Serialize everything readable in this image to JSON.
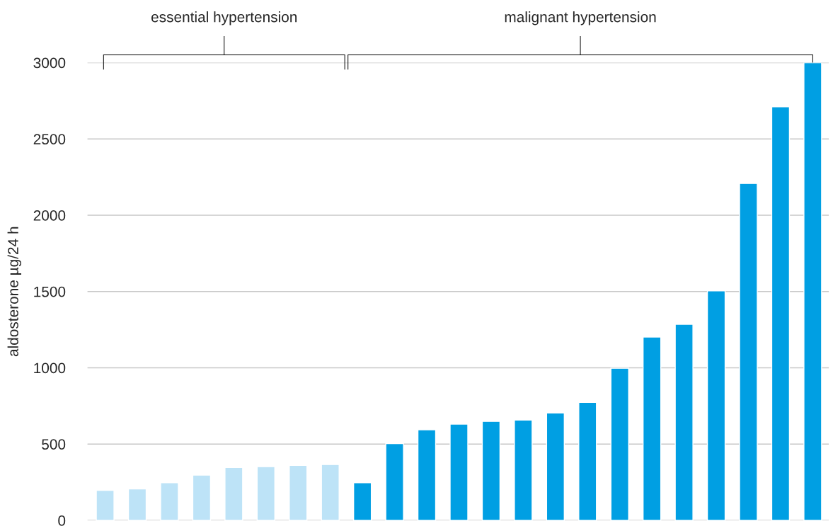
{
  "chart_data": {
    "type": "bar",
    "ylabel": "aldosterone µg/24 h",
    "categories": [
      null,
      null,
      null,
      null,
      null,
      null,
      null,
      null,
      null,
      null,
      null,
      null,
      null,
      null,
      null,
      null,
      null,
      null,
      null,
      null,
      null,
      null,
      null
    ],
    "values": [
      197,
      206,
      247,
      297,
      347,
      352,
      361,
      366,
      247,
      503,
      594,
      631,
      649,
      658,
      704,
      773,
      997,
      1202,
      1285,
      1504,
      2208,
      2711,
      3000
    ],
    "colors": [
      "#bde3f7",
      "#bde3f7",
      "#bde3f7",
      "#bde3f7",
      "#bde3f7",
      "#bde3f7",
      "#bde3f7",
      "#bde3f7",
      "#009fe3",
      "#009fe3",
      "#009fe3",
      "#009fe3",
      "#009fe3",
      "#009fe3",
      "#009fe3",
      "#009fe3",
      "#009fe3",
      "#009fe3",
      "#009fe3",
      "#009fe3",
      "#009fe3",
      "#009fe3",
      "#009fe3"
    ],
    "annotations": [
      "essential hypertension",
      "malignant hypertension"
    ],
    "ylim": [
      0,
      3000
    ],
    "yticks": [
      0,
      500,
      1000,
      1500,
      2000,
      2500,
      3000
    ],
    "grid": "y"
  }
}
